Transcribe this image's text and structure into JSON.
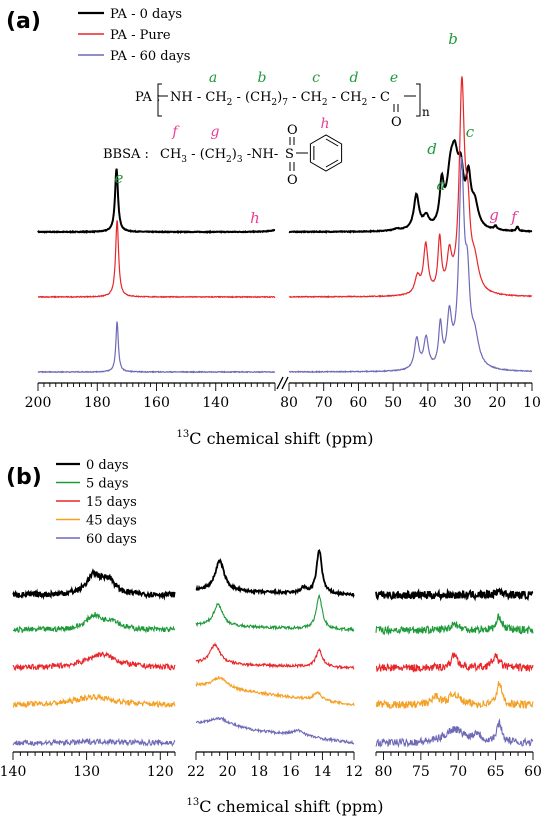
{
  "chart_data": [
    {
      "type": "line",
      "panel_label": "(a)",
      "xlabel": "13C chemical shift (ppm)",
      "xlabel_super": "13",
      "xlabel_rest": "C chemical shift (ppm)",
      "x_break_left": {
        "xlim": [
          200,
          120
        ],
        "ticks": [
          200,
          180,
          160,
          140
        ]
      },
      "x_break_right": {
        "xlim": [
          80,
          10
        ],
        "ticks": [
          80,
          70,
          60,
          50,
          40,
          30,
          20,
          10
        ]
      },
      "reversed_x": true,
      "legend": [
        {
          "name": "PA - 0 days",
          "color": "#000000"
        },
        {
          "name": "PA - Pure",
          "color": "#e8262a"
        },
        {
          "name": "PA - 60 days",
          "color": "#6e6ab6"
        }
      ],
      "series": [
        {
          "name": "PA - 0 days",
          "color": "#000000",
          "peaks": [
            {
              "x": 173.5,
              "y": 0.55,
              "w": 0.6
            },
            {
              "x": 118,
              "y": 0.03,
              "w": 2.5
            },
            {
              "x": 49,
              "y": 0.015,
              "w": 1.5
            },
            {
              "x": 43.3,
              "y": 0.3,
              "w": 0.9
            },
            {
              "x": 40.5,
              "y": 0.1,
              "w": 1.0
            },
            {
              "x": 36.0,
              "y": 0.35,
              "w": 0.7
            },
            {
              "x": 33.5,
              "y": 0.4,
              "w": 1.3
            },
            {
              "x": 32.2,
              "y": 0.45,
              "w": 1.2
            },
            {
              "x": 30.5,
              "y": 0.4,
              "w": 1.0
            },
            {
              "x": 28.3,
              "y": 0.38,
              "w": 0.8
            },
            {
              "x": 26.5,
              "y": 0.2,
              "w": 1.2
            },
            {
              "x": 20.5,
              "y": 0.03,
              "w": 0.5
            },
            {
              "x": 14.2,
              "y": 0.04,
              "w": 0.35
            }
          ]
        },
        {
          "name": "PA - Pure",
          "color": "#e8262a",
          "peaks": [
            {
              "x": 173.3,
              "y": 0.55,
              "w": 0.6
            },
            {
              "x": 43.0,
              "y": 0.12,
              "w": 0.9
            },
            {
              "x": 40.6,
              "y": 0.35,
              "w": 0.8
            },
            {
              "x": 36.6,
              "y": 0.38,
              "w": 0.6
            },
            {
              "x": 33.8,
              "y": 0.25,
              "w": 0.8
            },
            {
              "x": 30.2,
              "y": 1.45,
              "w": 0.9
            },
            {
              "x": 28.5,
              "y": 0.45,
              "w": 0.8
            },
            {
              "x": 26.5,
              "y": 0.2,
              "w": 1.4
            }
          ]
        },
        {
          "name": "PA - 60 days",
          "color": "#6e6ab6",
          "peaks": [
            {
              "x": 173.3,
              "y": 0.36,
              "w": 0.5
            },
            {
              "x": 43.2,
              "y": 0.22,
              "w": 0.8
            },
            {
              "x": 40.5,
              "y": 0.22,
              "w": 0.8
            },
            {
              "x": 36.4,
              "y": 0.3,
              "w": 0.6
            },
            {
              "x": 33.8,
              "y": 0.35,
              "w": 0.8
            },
            {
              "x": 30.3,
              "y": 1.4,
              "w": 0.9
            },
            {
              "x": 28.6,
              "y": 0.5,
              "w": 0.8
            },
            {
              "x": 26.5,
              "y": 0.2,
              "w": 1.4
            }
          ]
        }
      ],
      "annotations": {
        "peak_labels": [
          {
            "text": "e",
            "x": 173.5,
            "color": "#1f9a3a"
          },
          {
            "text": "h",
            "x": 118,
            "color": "#e83e96"
          },
          {
            "text": "a",
            "x": 43.3,
            "color": "#1f9a3a"
          },
          {
            "text": "d",
            "x": 36.5,
            "color": "#1f9a3a"
          },
          {
            "text": "b",
            "x": 31.8,
            "color": "#1f9a3a"
          },
          {
            "text": "c",
            "x": 27.5,
            "color": "#1f9a3a"
          },
          {
            "text": "g",
            "x": 21.0,
            "color": "#e83e96"
          },
          {
            "text": "f",
            "x": 14.5,
            "color": "#e83e96"
          }
        ],
        "pa_formula": {
          "prefix": "PA :",
          "groups": [
            "NH",
            "-",
            "CH2",
            "-",
            "(CH2)7",
            "-",
            "CH2",
            "-",
            "CH2",
            "-",
            "C"
          ],
          "carbonyl_o": "O",
          "n": "n",
          "letters": [
            "a",
            "b",
            "c",
            "d",
            "e"
          ]
        },
        "bbsa_formula": {
          "prefix": "BBSA :",
          "chain": "CH3 - (CH2)3 -NH-",
          "s": "S",
          "o_top": "O",
          "o_bot": "O",
          "letters": [
            "f",
            "g",
            "h"
          ]
        }
      }
    },
    {
      "type": "line",
      "panel_label": "(b)",
      "xlabel": "13C chemical shift (ppm)",
      "xlabel_super": "13",
      "xlabel_rest": "C chemical shift (ppm)",
      "reversed_x": true,
      "legend": [
        {
          "name": "0 days",
          "color": "#000000"
        },
        {
          "name": "5 days",
          "color": "#1f9a3a"
        },
        {
          "name": "15 days",
          "color": "#e8262a"
        },
        {
          "name": "45 days",
          "color": "#f4a024"
        },
        {
          "name": "60 days",
          "color": "#6e6ab6"
        }
      ],
      "subpanels": [
        {
          "xlim": [
            140,
            118
          ],
          "ticks": [
            140,
            130,
            120
          ],
          "series_peaks": [
            [
              {
                "x": 129,
                "y": 0.35,
                "w": 1.2
              },
              {
                "x": 127,
                "y": 0.25,
                "w": 1.0
              }
            ],
            [
              {
                "x": 129,
                "y": 0.25,
                "w": 1.3
              },
              {
                "x": 126.5,
                "y": 0.15,
                "w": 1.2
              }
            ],
            [
              {
                "x": 128,
                "y": 0.25,
                "w": 2.5
              }
            ],
            [
              {
                "x": 129,
                "y": 0.15,
                "w": 3.0
              }
            ],
            [
              {
                "x": 128,
                "y": 0.03,
                "w": 3.0
              }
            ]
          ]
        },
        {
          "xlim": [
            22,
            12
          ],
          "ticks": [
            22,
            20,
            18,
            16,
            14,
            12
          ],
          "series_peaks": [
            [
              {
                "x": 20.5,
                "y": 0.55,
                "w": 0.35
              },
              {
                "x": 14.2,
                "y": 0.8,
                "w": 0.2
              },
              {
                "x": 15.2,
                "y": 0.1,
                "w": 0.2
              }
            ],
            [
              {
                "x": 20.6,
                "y": 0.4,
                "w": 0.35
              },
              {
                "x": 14.2,
                "y": 0.6,
                "w": 0.22
              }
            ],
            [
              {
                "x": 20.8,
                "y": 0.35,
                "w": 0.4
              },
              {
                "x": 14.2,
                "y": 0.3,
                "w": 0.25
              }
            ],
            [
              {
                "x": 20.5,
                "y": 0.2,
                "w": 0.6
              },
              {
                "x": 14.3,
                "y": 0.15,
                "w": 0.3
              }
            ],
            [
              {
                "x": 20.5,
                "y": 0.15,
                "w": 0.8
              },
              {
                "x": 15.5,
                "y": 0.1,
                "w": 0.5
              }
            ]
          ]
        },
        {
          "xlim": [
            81,
            60
          ],
          "ticks": [
            80,
            75,
            70,
            65,
            60
          ],
          "series_peaks": [
            [
              {
                "x": 64.5,
                "y": 0.08,
                "w": 0.5
              }
            ],
            [
              {
                "x": 64.5,
                "y": 0.25,
                "w": 0.4
              },
              {
                "x": 70.5,
                "y": 0.12,
                "w": 0.6
              }
            ],
            [
              {
                "x": 70.5,
                "y": 0.25,
                "w": 0.5
              },
              {
                "x": 65.0,
                "y": 0.2,
                "w": 0.6
              }
            ],
            [
              {
                "x": 64.5,
                "y": 0.4,
                "w": 0.4
              },
              {
                "x": 70.5,
                "y": 0.2,
                "w": 0.8
              },
              {
                "x": 73.0,
                "y": 0.15,
                "w": 0.6
              }
            ],
            [
              {
                "x": 64.5,
                "y": 0.35,
                "w": 0.4
              },
              {
                "x": 70.5,
                "y": 0.25,
                "w": 1.5
              },
              {
                "x": 67.5,
                "y": 0.15,
                "w": 0.6
              }
            ]
          ]
        }
      ]
    }
  ]
}
